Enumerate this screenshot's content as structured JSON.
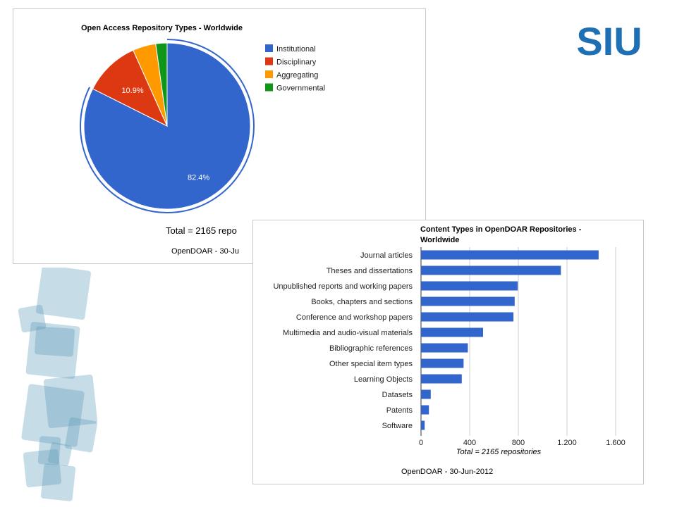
{
  "logo": {
    "text": "SIU",
    "color": "#1f6fb5"
  },
  "colors": {
    "blue": "#3366cc",
    "red": "#dc3912",
    "orange": "#ff9900",
    "green": "#109618",
    "deco": "#5b9bb6"
  },
  "chart_data": [
    {
      "type": "pie",
      "title": "Open Access Repository Types - Worldwide",
      "labels": [
        "Institutional",
        "Disciplinary",
        "Aggregating",
        "Governmental"
      ],
      "values": [
        82.4,
        10.9,
        4.5,
        2.2
      ],
      "data_labels": [
        "82.4%",
        "10.9%",
        "",
        ""
      ],
      "legend": "right",
      "footer_total": "Total = 2165 repo",
      "footer_source": "OpenDOAR - 30-Ju"
    },
    {
      "type": "bar",
      "orientation": "horizontal",
      "title_lines": [
        "Content Types in OpenDOAR Repositories -",
        "Worldwide"
      ],
      "categories": [
        "Journal articles",
        "Theses and dissertations",
        "Unpublished reports and working papers",
        "Books, chapters and sections",
        "Conference and workshop papers",
        "Multimedia and audio-visual materials",
        "Bibliographic references",
        "Other special item types",
        "Learning Objects",
        "Datasets",
        "Patents",
        "Software"
      ],
      "values": [
        1460,
        1150,
        795,
        770,
        760,
        510,
        385,
        350,
        335,
        80,
        65,
        30
      ],
      "xlim": [
        0,
        1600
      ],
      "xticks": [
        0,
        400,
        800,
        1200,
        1600
      ],
      "xtick_labels": [
        "0",
        "400",
        "800",
        "1.200",
        "1.600"
      ],
      "xlabel": "Total = 2165 repositories",
      "grid": true,
      "footer_source": "OpenDOAR - 30-Jun-2012"
    }
  ]
}
